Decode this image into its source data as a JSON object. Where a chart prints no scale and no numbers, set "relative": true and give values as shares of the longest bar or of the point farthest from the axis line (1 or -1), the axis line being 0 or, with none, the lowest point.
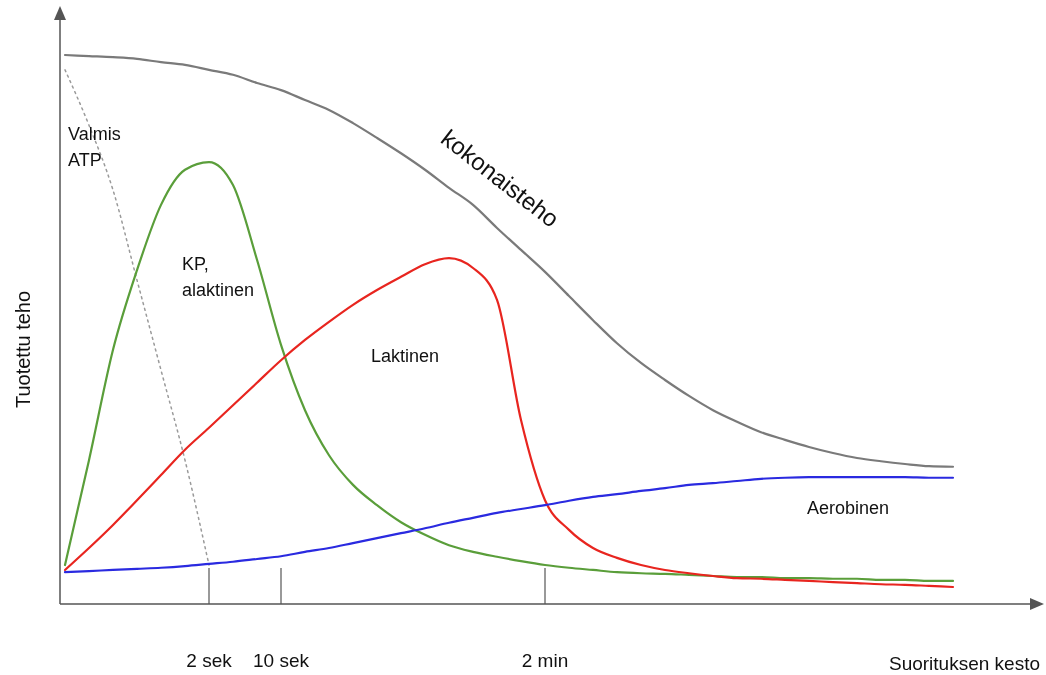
{
  "chart_data": {
    "type": "line",
    "relative": true,
    "xlabel": "Suorituksen kesto",
    "ylabel": "Tuotettu teho",
    "categories": [
      null,
      null,
      null,
      null,
      null,
      null,
      "2 sek",
      null,
      null,
      "10 sek",
      null,
      null,
      null,
      null,
      null,
      null,
      null,
      null,
      null,
      null,
      "2 min",
      null,
      null,
      null,
      null,
      null,
      null,
      null,
      null,
      null,
      null,
      null,
      null,
      null,
      null,
      null,
      null,
      null
    ],
    "series": [
      {
        "name": "kokonaisteho",
        "color": "#7a7a7a",
        "values": [
          1.0,
          0.998,
          0.996,
          0.993,
          0.987,
          0.982,
          0.973,
          0.964,
          0.949,
          0.936,
          0.918,
          0.9,
          0.876,
          0.849,
          0.821,
          0.791,
          0.758,
          0.727,
          0.685,
          0.645,
          0.605,
          0.561,
          0.517,
          0.475,
          0.439,
          0.408,
          0.379,
          0.353,
          0.332,
          0.313,
          0.299,
          0.286,
          0.275,
          0.266,
          0.26,
          0.255,
          0.251,
          0.25
        ]
      },
      {
        "name": "Valmis ATP",
        "color": "#9a9a9a",
        "line_style": "dotted",
        "values": [
          0.973,
          0.872,
          0.754,
          0.59,
          0.426,
          0.262,
          0.071,
          null,
          null,
          null,
          null,
          null,
          null,
          null,
          null,
          null,
          null,
          null,
          null,
          null,
          null,
          null,
          null,
          null,
          null,
          null,
          null,
          null,
          null,
          null,
          null,
          null,
          null,
          null,
          null,
          null,
          null,
          null
        ]
      },
      {
        "name": "KP, alaktinen",
        "color": "#5a9e3a",
        "values": [
          0.071,
          0.262,
          0.463,
          0.608,
          0.727,
          0.791,
          0.805,
          0.763,
          0.627,
          0.472,
          0.353,
          0.271,
          0.217,
          0.18,
          0.149,
          0.126,
          0.107,
          0.095,
          0.086,
          0.078,
          0.071,
          0.066,
          0.062,
          0.058,
          0.056,
          0.055,
          0.053,
          0.051,
          0.049,
          0.049,
          0.047,
          0.047,
          0.046,
          0.046,
          0.044,
          0.044,
          0.042,
          0.042
        ]
      },
      {
        "name": "Laktinen",
        "color": "#e8251f",
        "values": [
          0.062,
          0.102,
          0.144,
          0.189,
          0.235,
          0.281,
          0.321,
          0.362,
          0.403,
          0.444,
          0.481,
          0.514,
          0.545,
          0.572,
          0.596,
          0.619,
          0.63,
          0.612,
          0.554,
          0.335,
          0.189,
          0.135,
          0.102,
          0.084,
          0.071,
          0.062,
          0.056,
          0.051,
          0.047,
          0.046,
          0.044,
          0.042,
          0.04,
          0.038,
          0.036,
          0.035,
          0.033,
          0.031
        ]
      },
      {
        "name": "Aerobinen",
        "color": "#2a2ae0",
        "values": [
          0.058,
          0.06,
          0.062,
          0.064,
          0.066,
          0.069,
          0.073,
          0.077,
          0.082,
          0.087,
          0.095,
          0.102,
          0.111,
          0.12,
          0.129,
          0.138,
          0.148,
          0.157,
          0.166,
          0.173,
          0.18,
          0.188,
          0.195,
          0.2,
          0.206,
          0.211,
          0.217,
          0.22,
          0.224,
          0.228,
          0.23,
          0.231,
          0.231,
          0.231,
          0.231,
          0.231,
          0.23,
          0.23
        ]
      }
    ]
  }
}
